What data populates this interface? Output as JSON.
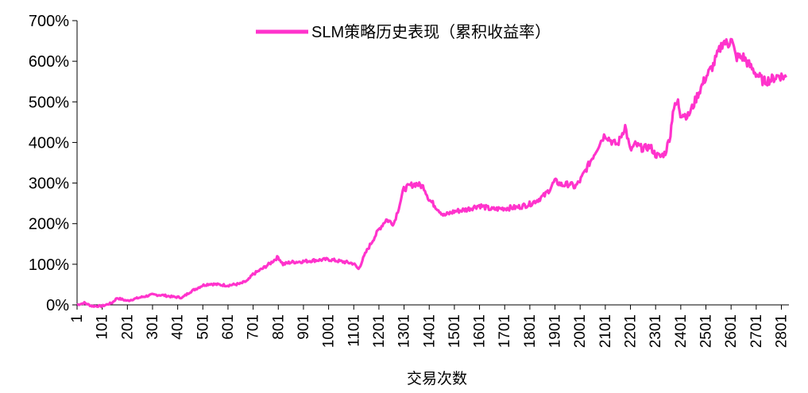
{
  "chart_data": {
    "type": "line",
    "title": "",
    "xlabel": "交易次数",
    "ylabel": "",
    "legend": {
      "position": "top-center",
      "entries": [
        "SLM策略历史表现（累积收益率）"
      ]
    },
    "grid": false,
    "series_color": "#FF33CC",
    "ylim": [
      0,
      700
    ],
    "y_ticks": [
      0,
      100,
      200,
      300,
      400,
      500,
      600,
      700
    ],
    "y_tick_labels": [
      "0%",
      "100%",
      "200%",
      "300%",
      "400%",
      "500%",
      "600%",
      "700%"
    ],
    "xlim": [
      1,
      2831
    ],
    "x_ticks": [
      1,
      101,
      201,
      301,
      401,
      501,
      601,
      701,
      801,
      901,
      1001,
      1101,
      1201,
      1301,
      1401,
      1501,
      1601,
      1701,
      1801,
      1901,
      2001,
      2101,
      2201,
      2301,
      2401,
      2501,
      2601,
      2701,
      2801
    ],
    "x_tick_labels": [
      "1",
      "101",
      "201",
      "301",
      "401",
      "501",
      "601",
      "701",
      "801",
      "901",
      "1001",
      "1101",
      "1201",
      "1301",
      "1401",
      "1501",
      "1601",
      "1701",
      "1801",
      "1901",
      "2001",
      "2101",
      "2201",
      "2301",
      "2401",
      "2501",
      "2601",
      "2701",
      "2801"
    ],
    "series": [
      {
        "name": "SLM策略历史表现（累积收益率）",
        "x": [
          1,
          30,
          60,
          100,
          140,
          160,
          200,
          250,
          300,
          340,
          380,
          420,
          450,
          500,
          530,
          560,
          600,
          650,
          680,
          700,
          740,
          770,
          800,
          820,
          850,
          900,
          950,
          1000,
          1050,
          1100,
          1120,
          1150,
          1200,
          1230,
          1260,
          1280,
          1300,
          1330,
          1350,
          1380,
          1400,
          1430,
          1460,
          1500,
          1550,
          1600,
          1650,
          1700,
          1750,
          1800,
          1830,
          1860,
          1880,
          1900,
          1930,
          1960,
          1980,
          2000,
          2030,
          2060,
          2080,
          2100,
          2130,
          2150,
          2180,
          2200,
          2220,
          2250,
          2280,
          2300,
          2320,
          2340,
          2360,
          2370,
          2390,
          2400,
          2410,
          2430,
          2450,
          2470,
          2500,
          2530,
          2550,
          2570,
          2590,
          2600,
          2620,
          2650,
          2680,
          2700,
          2730,
          2760,
          2790,
          2820
        ],
        "y": [
          0,
          5,
          -3,
          -3,
          5,
          17,
          10,
          18,
          25,
          24,
          20,
          18,
          32,
          48,
          52,
          50,
          48,
          52,
          60,
          75,
          90,
          103,
          118,
          100,
          105,
          107,
          110,
          112,
          107,
          102,
          88,
          130,
          185,
          210,
          200,
          240,
          285,
          295,
          298,
          290,
          260,
          240,
          220,
          230,
          235,
          245,
          235,
          238,
          240,
          248,
          258,
          270,
          285,
          305,
          295,
          298,
          290,
          305,
          340,
          375,
          400,
          420,
          400,
          395,
          440,
          380,
          395,
          385,
          390,
          370,
          365,
          375,
          420,
          480,
          500,
          470,
          470,
          465,
          490,
          520,
          560,
          590,
          620,
          650,
          640,
          660,
          610,
          610,
          585,
          570,
          550,
          555,
          565,
          560
        ]
      }
    ]
  }
}
